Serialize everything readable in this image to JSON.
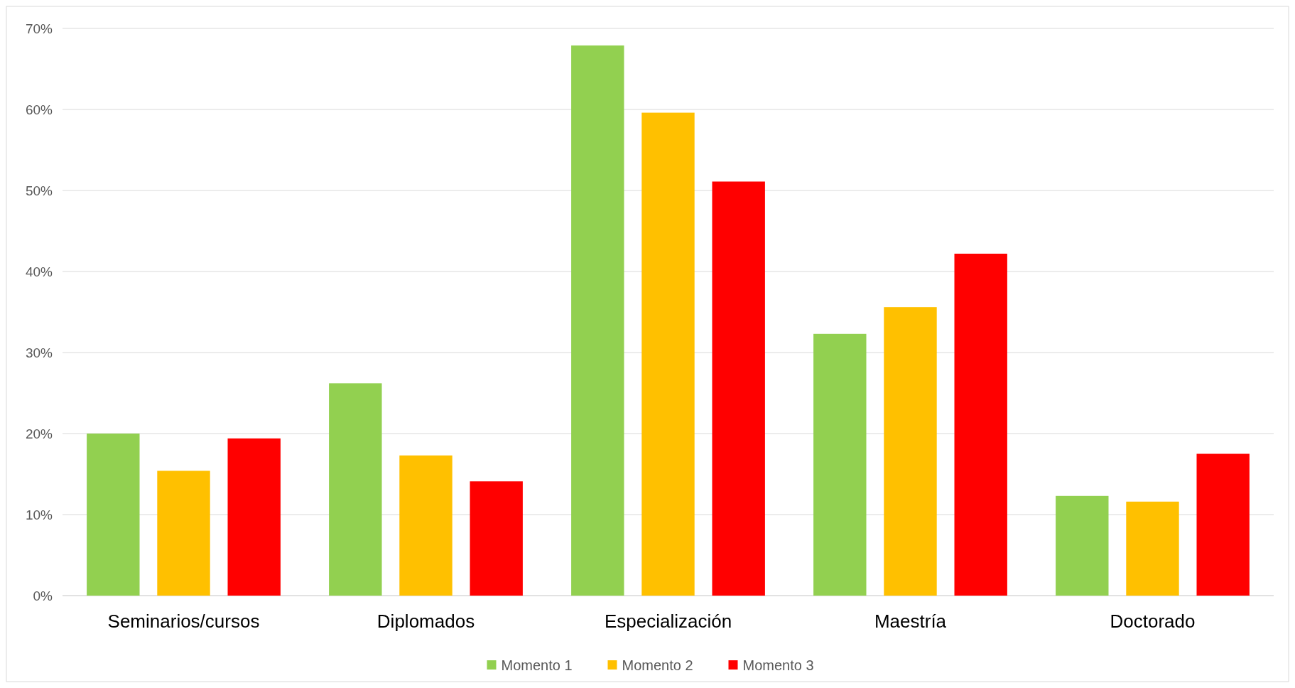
{
  "chart_data": {
    "type": "bar",
    "categories": [
      "Seminarios/cursos",
      "Diplomados",
      "Especialización",
      "Maestría",
      "Doctorado"
    ],
    "series": [
      {
        "name": "Momento 1",
        "color": "#92d050",
        "values": [
          20,
          26.2,
          67.9,
          32.3,
          12.3
        ]
      },
      {
        "name": "Momento 2",
        "color": "#ffc000",
        "values": [
          15.4,
          17.3,
          59.6,
          35.6,
          11.6
        ]
      },
      {
        "name": "Momento 3",
        "color": "#ff0000",
        "values": [
          19.4,
          14.1,
          51.1,
          42.2,
          17.5
        ]
      }
    ],
    "ylim": [
      0,
      70
    ],
    "yticks": [
      {
        "value": 0,
        "label": "0%"
      },
      {
        "value": 10,
        "label": "10%"
      },
      {
        "value": 20,
        "label": "20%"
      },
      {
        "value": 30,
        "label": "30%"
      },
      {
        "value": 40,
        "label": "40%"
      },
      {
        "value": 50,
        "label": "50%"
      },
      {
        "value": 60,
        "label": "60%"
      },
      {
        "value": 70,
        "label": "70%"
      }
    ],
    "grid": "y",
    "legend": "bottom"
  }
}
